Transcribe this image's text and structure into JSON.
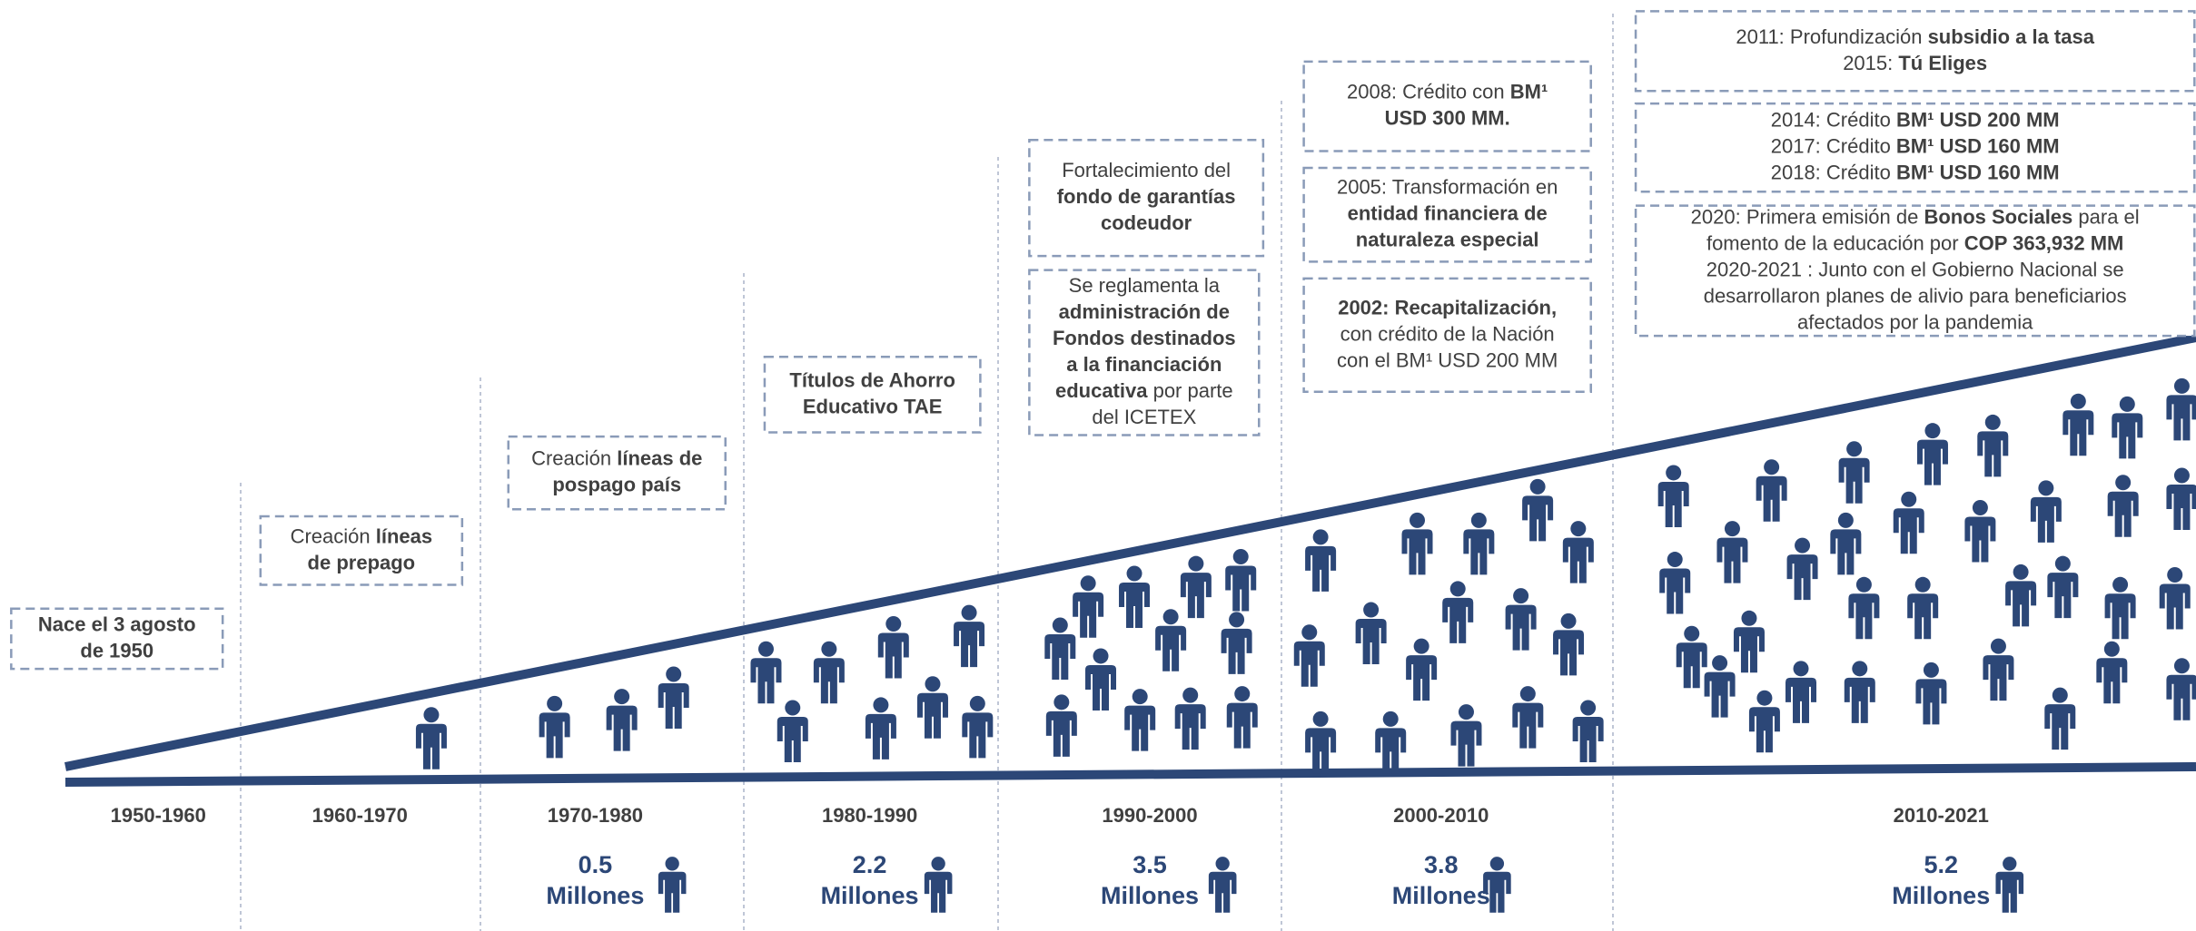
{
  "periods": [
    {
      "label": "1950-1960"
    },
    {
      "label": "1960-1970"
    },
    {
      "label": "1970-1980",
      "count": "0.5",
      "unit": "Millones"
    },
    {
      "label": "1980-1990",
      "count": "2.2",
      "unit": "Millones"
    },
    {
      "label": "1990-2000",
      "count": "3.5",
      "unit": "Millones"
    },
    {
      "label": "2000-2010",
      "count": "3.8",
      "unit": "Millones"
    },
    {
      "label": "2010-2021",
      "count": "5.2",
      "unit": "Millones"
    }
  ],
  "boxes": [
    {
      "lines": [
        [
          {
            "text": "Nace el 3 agosto",
            "bold": true
          }
        ],
        [
          {
            "text": "de 1950",
            "bold": true
          }
        ]
      ]
    },
    {
      "lines": [
        [
          {
            "text": "Creación ",
            "bold": false
          },
          {
            "text": "líneas",
            "bold": true
          }
        ],
        [
          {
            "text": "de prepago",
            "bold": true
          }
        ]
      ]
    },
    {
      "lines": [
        [
          {
            "text": "Creación ",
            "bold": false
          },
          {
            "text": "líneas de",
            "bold": true
          }
        ],
        [
          {
            "text": "pospago país",
            "bold": true
          }
        ]
      ]
    },
    {
      "lines": [
        [
          {
            "text": "Títulos de Ahorro",
            "bold": true
          }
        ],
        [
          {
            "text": "Educativo TAE",
            "bold": true
          }
        ]
      ]
    },
    {
      "lines": [
        [
          {
            "text": "Fortalecimiento del",
            "bold": false
          }
        ],
        [
          {
            "text": "fondo de garantías",
            "bold": true
          }
        ],
        [
          {
            "text": "codeudor",
            "bold": true
          }
        ]
      ]
    },
    {
      "lines": [
        [
          {
            "text": "Se reglamenta la",
            "bold": false
          }
        ],
        [
          {
            "text": "administración de",
            "bold": true
          }
        ],
        [
          {
            "text": "Fondos destinados",
            "bold": true
          }
        ],
        [
          {
            "text": "a la financiación",
            "bold": true
          }
        ],
        [
          {
            "text": "educativa",
            "bold": true
          },
          {
            "text": " por parte",
            "bold": false
          }
        ],
        [
          {
            "text": "del ICETEX",
            "bold": false
          }
        ]
      ]
    },
    {
      "lines": [
        [
          {
            "text": "2008: Crédito con ",
            "bold": false
          },
          {
            "text": "BM¹",
            "bold": true
          }
        ],
        [
          {
            "text": "USD 300 MM.",
            "bold": true
          }
        ]
      ]
    },
    {
      "lines": [
        [
          {
            "text": "2005: Transformación en",
            "bold": false
          }
        ],
        [
          {
            "text": "entidad financiera de",
            "bold": true
          }
        ],
        [
          {
            "text": "naturaleza especial",
            "bold": true
          }
        ]
      ]
    },
    {
      "lines": [
        [
          {
            "text": "2002: Recapitalización,",
            "bold": true
          }
        ],
        [
          {
            "text": "con crédito de la Nación",
            "bold": false
          }
        ],
        [
          {
            "text": "con el BM¹ USD 200 MM",
            "bold": false
          }
        ]
      ]
    },
    {
      "lines": [
        [
          {
            "text": "2011: Profundización ",
            "bold": false
          },
          {
            "text": "subsidio a la tasa",
            "bold": true
          }
        ],
        [
          {
            "text": "2015: ",
            "bold": false
          },
          {
            "text": "Tú Eliges",
            "bold": true
          }
        ]
      ]
    },
    {
      "lines": [
        [
          {
            "text": "2014: Crédito ",
            "bold": false
          },
          {
            "text": "BM¹ USD 200 MM",
            "bold": true
          }
        ],
        [
          {
            "text": "2017: Crédito ",
            "bold": false
          },
          {
            "text": "BM¹",
            "bold": true
          },
          {
            "text": " USD 160 MM",
            "bold": true
          }
        ],
        [
          {
            "text": "2018: Crédito ",
            "bold": false
          },
          {
            "text": "BM¹ USD 160 MM",
            "bold": true
          }
        ]
      ]
    },
    {
      "lines": [
        [
          {
            "text": "2020: Primera emisión de ",
            "bold": false
          },
          {
            "text": "Bonos Sociales",
            "bold": true
          },
          {
            "text": " para el",
            "bold": false
          }
        ],
        [
          {
            "text": "fomento de la educación por ",
            "bold": false
          },
          {
            "text": "COP 363,932 MM",
            "bold": true
          }
        ],
        [
          {
            "text": "2020-2021 : Junto con el Gobierno Nacional se",
            "bold": false
          }
        ],
        [
          {
            "text": "desarrollaron planes de alivio para beneficiarios",
            "bold": false
          }
        ],
        [
          {
            "text": "afectados por la pandemia",
            "bold": false
          }
        ]
      ]
    }
  ]
}
